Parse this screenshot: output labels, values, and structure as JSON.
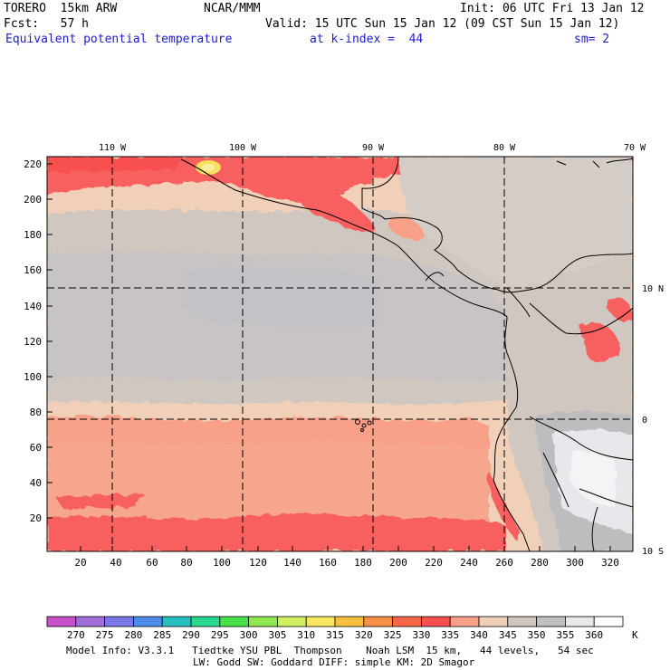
{
  "header": {
    "model": "TORERO  15km ARW",
    "center": "NCAR/MMM",
    "init": "Init: 06 UTC Fri 13 Jan 12",
    "fcst": "Fcst:   57 h",
    "valid": "Valid: 15 UTC Sun 15 Jan 12 (09 CST Sun 15 Jan 12)",
    "field": "Equivalent potential temperature",
    "level": "at k-index =  44",
    "smoothing": "sm= 2"
  },
  "map": {
    "lon_labels": [
      "110 W",
      "100 W",
      "90 W",
      "80 W",
      "70 W"
    ],
    "lat_labels": [
      "10 N",
      "0",
      "10 S"
    ],
    "y_ticks": [
      "220",
      "200",
      "180",
      "160",
      "140",
      "120",
      "100",
      "80",
      "60",
      "40",
      "20"
    ],
    "x_ticks": [
      "20",
      "40",
      "60",
      "80",
      "100",
      "120",
      "140",
      "160",
      "180",
      "200",
      "220",
      "240",
      "260",
      "280",
      "300",
      "320"
    ]
  },
  "colorbar": {
    "labels": [
      "270",
      "275",
      "280",
      "285",
      "290",
      "295",
      "300",
      "305",
      "310",
      "315",
      "320",
      "325",
      "330",
      "335",
      "340",
      "345",
      "350",
      "355",
      "360"
    ],
    "unit": "K",
    "colors": [
      "#c850c8",
      "#a070d8",
      "#7a78e8",
      "#4c8ce8",
      "#28c0c0",
      "#28d890",
      "#48e048",
      "#90e850",
      "#d0f060",
      "#f8e860",
      "#f8c040",
      "#f89048",
      "#f86848",
      "#f85050",
      "#f8a088",
      "#f0d0b8",
      "#d0c8c0",
      "#c0c0c4",
      "#e8e8ec",
      "#ffffff"
    ]
  },
  "footer": {
    "line1": "Model Info: V3.3.1   Tiedtke YSU PBL  Thompson    Noah LSM  15 km,   44 levels,   54 sec",
    "line2": "LW: Godd SW: Goddard DIFF: simple KM: 2D Smagor"
  }
}
